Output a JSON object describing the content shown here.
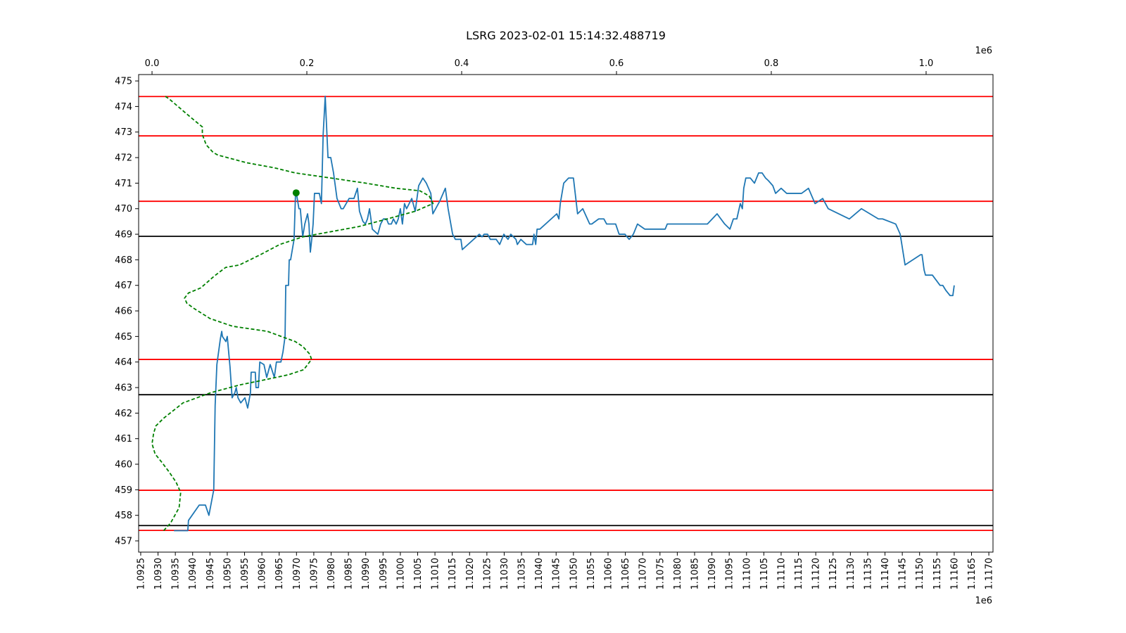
{
  "chart_data": {
    "type": "line",
    "title": "LSRG 2023-02-01 15:14:32.488719",
    "x_offset_label": "1e6",
    "x2_offset_label": "1e6",
    "xlim": [
      1.09244,
      1.11712
    ],
    "xticks": [
      {
        "value": 1.0925,
        "label": "1.0925"
      },
      {
        "value": 1.093,
        "label": "1.0930"
      },
      {
        "value": 1.0935,
        "label": "1.0935"
      },
      {
        "value": 1.094,
        "label": "1.0940"
      },
      {
        "value": 1.0945,
        "label": "1.0945"
      },
      {
        "value": 1.095,
        "label": "1.0950"
      },
      {
        "value": 1.0955,
        "label": "1.0955"
      },
      {
        "value": 1.096,
        "label": "1.0960"
      },
      {
        "value": 1.0965,
        "label": "1.0965"
      },
      {
        "value": 1.097,
        "label": "1.0970"
      },
      {
        "value": 1.0975,
        "label": "1.0975"
      },
      {
        "value": 1.098,
        "label": "1.0980"
      },
      {
        "value": 1.0985,
        "label": "1.0985"
      },
      {
        "value": 1.099,
        "label": "1.0990"
      },
      {
        "value": 1.0995,
        "label": "1.0995"
      },
      {
        "value": 1.1,
        "label": "1.1000"
      },
      {
        "value": 1.1005,
        "label": "1.1005"
      },
      {
        "value": 1.101,
        "label": "1.1010"
      },
      {
        "value": 1.1015,
        "label": "1.1015"
      },
      {
        "value": 1.102,
        "label": "1.1020"
      },
      {
        "value": 1.1025,
        "label": "1.1025"
      },
      {
        "value": 1.103,
        "label": "1.1030"
      },
      {
        "value": 1.1035,
        "label": "1.1035"
      },
      {
        "value": 1.104,
        "label": "1.1040"
      },
      {
        "value": 1.1045,
        "label": "1.1045"
      },
      {
        "value": 1.105,
        "label": "1.1050"
      },
      {
        "value": 1.1055,
        "label": "1.1055"
      },
      {
        "value": 1.106,
        "label": "1.1060"
      },
      {
        "value": 1.1065,
        "label": "1.1065"
      },
      {
        "value": 1.107,
        "label": "1.1070"
      },
      {
        "value": 1.1075,
        "label": "1.1075"
      },
      {
        "value": 1.108,
        "label": "1.1080"
      },
      {
        "value": 1.1085,
        "label": "1.1085"
      },
      {
        "value": 1.109,
        "label": "1.1090"
      },
      {
        "value": 1.1095,
        "label": "1.1095"
      },
      {
        "value": 1.11,
        "label": "1.1100"
      },
      {
        "value": 1.1105,
        "label": "1.1105"
      },
      {
        "value": 1.111,
        "label": "1.1110"
      },
      {
        "value": 1.1115,
        "label": "1.1115"
      },
      {
        "value": 1.112,
        "label": "1.1120"
      },
      {
        "value": 1.1125,
        "label": "1.1125"
      },
      {
        "value": 1.113,
        "label": "1.1130"
      },
      {
        "value": 1.1135,
        "label": "1.1135"
      },
      {
        "value": 1.114,
        "label": "1.1140"
      },
      {
        "value": 1.1145,
        "label": "1.1145"
      },
      {
        "value": 1.115,
        "label": "1.1150"
      },
      {
        "value": 1.1155,
        "label": "1.1155"
      },
      {
        "value": 1.116,
        "label": "1.1160"
      },
      {
        "value": 1.1165,
        "label": "1.1165"
      },
      {
        "value": 1.117,
        "label": "1.1170"
      }
    ],
    "x2lim": [
      -0.0173,
      1.0864
    ],
    "x2ticks": [
      {
        "value": 0,
        "label": "0.0"
      },
      {
        "value": 0.2,
        "label": "0.2"
      },
      {
        "value": 0.4,
        "label": "0.4"
      },
      {
        "value": 0.6,
        "label": "0.6"
      },
      {
        "value": 0.8,
        "label": "0.8"
      },
      {
        "value": 1.0,
        "label": "1.0"
      }
    ],
    "ylim": [
      456.56,
      475.25
    ],
    "yticks": [
      457,
      458,
      459,
      460,
      461,
      462,
      463,
      464,
      465,
      466,
      467,
      468,
      469,
      470,
      471,
      472,
      473,
      474,
      475
    ],
    "series": [
      {
        "color": "#1f77b4",
        "linestyle": "solid",
        "x": [
          1.09346,
          1.09386,
          1.09388,
          1.09419,
          1.09437,
          1.09447,
          1.09461,
          1.09465,
          1.0947,
          1.0948,
          1.09484,
          1.09486,
          1.09496,
          1.095,
          1.09508,
          1.09514,
          1.09522,
          1.09526,
          1.09531,
          1.09539,
          1.09551,
          1.09559,
          1.09567,
          1.09569,
          1.09581,
          1.09583,
          1.0959,
          1.09594,
          1.09606,
          1.09614,
          1.09624,
          1.09636,
          1.09642,
          1.09655,
          1.09661,
          1.09667,
          1.09669,
          1.09677,
          1.09679,
          1.09683,
          1.09693,
          1.09697,
          1.09701,
          1.09707,
          1.09711,
          1.09718,
          1.09724,
          1.09732,
          1.09736,
          1.0974,
          1.09744,
          1.09748,
          1.09752,
          1.09766,
          1.09772,
          1.09777,
          1.09783,
          1.09791,
          1.09799,
          1.09807,
          1.09817,
          1.09829,
          1.09835,
          1.09852,
          1.09866,
          1.09876,
          1.09882,
          1.09892,
          1.09899,
          1.09905,
          1.09911,
          1.09919,
          1.09935,
          1.09943,
          1.09951,
          1.0996,
          1.09966,
          1.09974,
          1.0998,
          1.09988,
          1.09994,
          1.1,
          1.10006,
          1.10012,
          1.10018,
          1.10033,
          1.10043,
          1.10053,
          1.10065,
          1.10075,
          1.10088,
          1.10094,
          1.10114,
          1.1013,
          1.10138,
          1.10151,
          1.10159,
          1.10175,
          1.10179,
          1.10228,
          1.10236,
          1.10242,
          1.10252,
          1.1026,
          1.10277,
          1.10287,
          1.10299,
          1.10311,
          1.10319,
          1.10334,
          1.10338,
          1.10348,
          1.10364,
          1.10382,
          1.10386,
          1.10391,
          1.10395,
          1.10403,
          1.10452,
          1.10458,
          1.10462,
          1.10472,
          1.10486,
          1.105,
          1.10512,
          1.10527,
          1.10547,
          1.10553,
          1.10573,
          1.10588,
          1.10596,
          1.10622,
          1.10632,
          1.10649,
          1.10661,
          1.10673,
          1.10685,
          1.10706,
          1.10765,
          1.10771,
          1.10887,
          1.10915,
          1.10937,
          1.10952,
          1.10962,
          1.10972,
          1.10982,
          1.10988,
          1.10992,
          1.10998,
          1.11011,
          1.11023,
          1.11035,
          1.11045,
          1.11055,
          1.11063,
          1.11076,
          1.11084,
          1.111,
          1.11116,
          1.11159,
          1.11179,
          1.11198,
          1.1122,
          1.11236,
          1.11297,
          1.11332,
          1.11381,
          1.11393,
          1.11431,
          1.11444,
          1.11458,
          1.11503,
          1.11507,
          1.11513,
          1.11517,
          1.11537,
          1.11559,
          1.11567,
          1.11576,
          1.11588,
          1.11596,
          1.116
        ],
        "values": [
          457.4,
          457.4,
          457.8,
          458.4,
          458.4,
          458.0,
          459.0,
          462.3,
          463.9,
          464.9,
          465.2,
          465.0,
          464.8,
          465.0,
          463.8,
          462.6,
          462.8,
          463.0,
          462.6,
          462.4,
          462.6,
          462.2,
          462.8,
          463.6,
          463.6,
          463.0,
          463.0,
          464.0,
          463.9,
          463.4,
          463.9,
          463.4,
          464.0,
          464.0,
          464.4,
          465.0,
          467.0,
          467.0,
          468.0,
          468.0,
          468.8,
          470.5,
          470.5,
          470.0,
          470.0,
          468.9,
          469.4,
          469.8,
          469.4,
          468.3,
          468.8,
          469.4,
          470.6,
          470.6,
          470.2,
          472.9,
          474.4,
          472.0,
          472.0,
          471.4,
          470.4,
          470.0,
          470.0,
          470.4,
          470.4,
          470.8,
          469.9,
          469.5,
          469.4,
          469.6,
          470.0,
          469.2,
          469.0,
          469.4,
          469.6,
          469.6,
          469.4,
          469.4,
          469.6,
          469.4,
          469.6,
          470.0,
          469.4,
          470.2,
          470.0,
          470.4,
          469.9,
          470.9,
          471.2,
          471.0,
          470.6,
          469.8,
          470.3,
          470.8,
          470.0,
          469.0,
          468.8,
          468.8,
          468.4,
          469.0,
          468.9,
          469.0,
          469.0,
          468.8,
          468.8,
          468.6,
          469.0,
          468.8,
          469.0,
          468.8,
          468.6,
          468.8,
          468.6,
          468.6,
          469.0,
          468.6,
          469.2,
          469.2,
          469.8,
          469.6,
          470.2,
          471.0,
          471.2,
          471.2,
          469.8,
          470.0,
          469.4,
          469.4,
          469.6,
          469.6,
          469.4,
          469.4,
          469.0,
          469.0,
          468.8,
          469.0,
          469.4,
          469.2,
          469.2,
          469.4,
          469.4,
          469.8,
          469.4,
          469.2,
          469.6,
          469.6,
          470.2,
          470.0,
          470.8,
          471.2,
          471.2,
          471.0,
          471.4,
          471.4,
          471.2,
          471.1,
          470.9,
          470.6,
          470.8,
          470.6,
          470.6,
          470.8,
          470.2,
          470.4,
          470.0,
          469.6,
          470.0,
          469.6,
          469.6,
          469.4,
          469.0,
          467.8,
          468.2,
          468.2,
          467.6,
          467.4,
          467.4,
          467.0,
          467.0,
          466.8,
          466.6,
          466.6,
          467.0
        ]
      },
      {
        "color": "#008000",
        "linestyle": "dashed",
        "axis": "x2",
        "x": [
          0.015,
          0.024,
          0.035,
          0.037,
          0.031,
          0.022,
          0.012,
          0.004,
          0.0,
          0.002,
          0.005,
          0.015,
          0.04,
          0.076,
          0.113,
          0.145,
          0.176,
          0.196,
          0.206,
          0.204,
          0.195,
          0.185,
          0.149,
          0.104,
          0.075,
          0.054,
          0.045,
          0.042,
          0.047,
          0.063,
          0.078,
          0.082,
          0.095,
          0.113,
          0.14,
          0.165,
          0.195,
          0.231,
          0.267,
          0.304,
          0.34,
          0.363,
          0.358,
          0.346,
          0.315,
          0.276,
          0.231,
          0.185,
          0.158,
          0.122,
          0.085,
          0.079,
          0.07,
          0.065,
          0.065,
          0.049,
          0.022,
          0.017
        ],
        "values": [
          457.4,
          457.7,
          458.3,
          458.9,
          459.3,
          459.7,
          460.1,
          460.4,
          460.8,
          461.2,
          461.5,
          461.8,
          462.4,
          462.8,
          463.1,
          463.3,
          463.5,
          463.7,
          464.1,
          464.3,
          464.6,
          464.8,
          465.2,
          465.4,
          465.7,
          466.1,
          466.3,
          466.5,
          466.7,
          466.9,
          467.3,
          467.4,
          467.7,
          467.8,
          468.2,
          468.6,
          468.9,
          469.1,
          469.3,
          469.6,
          469.9,
          470.2,
          470.5,
          470.7,
          470.8,
          471.0,
          471.2,
          471.4,
          471.6,
          471.8,
          472.1,
          472.2,
          472.5,
          472.9,
          473.2,
          473.6,
          474.3,
          474.4
        ]
      }
    ],
    "hlines": [
      {
        "value": 474.39,
        "color": "#ff0000"
      },
      {
        "value": 472.85,
        "color": "#ff0000"
      },
      {
        "value": 470.29,
        "color": "#ff0000"
      },
      {
        "value": 464.1,
        "color": "#ff0000"
      },
      {
        "value": 458.98,
        "color": "#ff0000"
      },
      {
        "value": 457.41,
        "color": "#ff0000"
      },
      {
        "value": 468.92,
        "color": "#000000"
      },
      {
        "value": 462.72,
        "color": "#000000"
      },
      {
        "value": 457.6,
        "color": "#000000"
      }
    ],
    "markers": [
      {
        "x": 1.09699,
        "y": 470.62,
        "color": "#008000"
      }
    ]
  }
}
